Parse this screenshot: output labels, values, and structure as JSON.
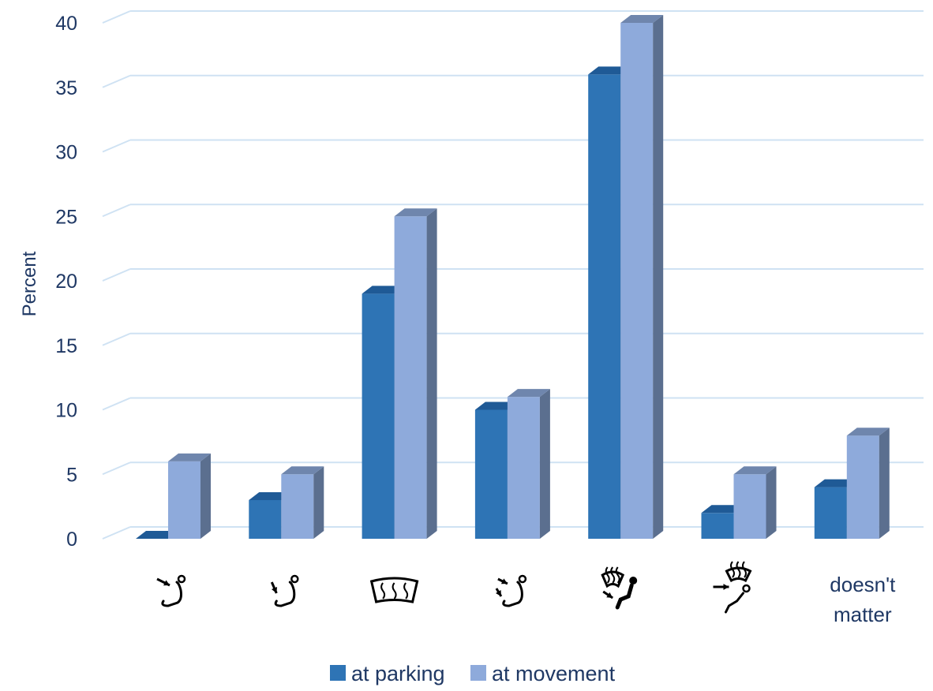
{
  "chart_data": {
    "type": "bar",
    "ylabel": "Percent",
    "ylim": [
      0,
      40
    ],
    "yticks": [
      "0",
      "5",
      "10",
      "15",
      "20",
      "25",
      "30",
      "35",
      "40"
    ],
    "categories": [
      {
        "icon": "airflow-face-icon",
        "label": ""
      },
      {
        "icon": "airflow-feet-icon",
        "label": ""
      },
      {
        "icon": "windshield-defrost-icon",
        "label": ""
      },
      {
        "icon": "airflow-face-feet-icon",
        "label": ""
      },
      {
        "icon": "windshield-defrost-feet-icon",
        "label": ""
      },
      {
        "icon": "windshield-defrost-face-icon",
        "label": ""
      },
      {
        "icon": "",
        "label": [
          "doesn't",
          "matter"
        ]
      }
    ],
    "series": [
      {
        "name": "at parking",
        "color": "#2e74b5",
        "side_color": "#1f4e79",
        "top_color": "#1f5a96",
        "values": [
          0,
          3,
          19,
          10,
          36,
          2,
          4
        ]
      },
      {
        "name": "at movement",
        "color": "#8eaadb",
        "side_color": "#5b6f8f",
        "top_color": "#6f86ad",
        "values": [
          6,
          5,
          25,
          11,
          40,
          5,
          8
        ]
      }
    ],
    "grid": true,
    "legend_position": "bottom"
  }
}
